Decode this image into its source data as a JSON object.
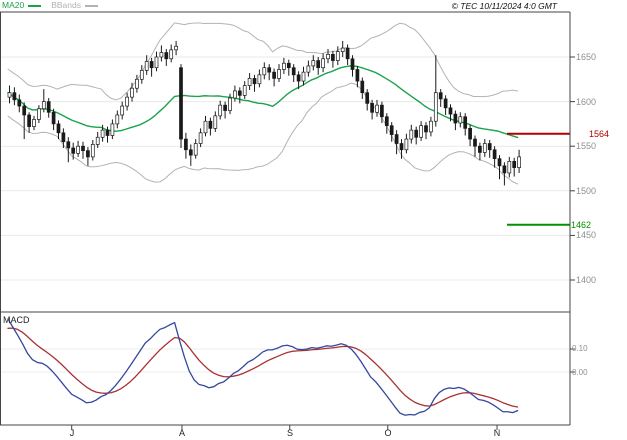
{
  "legend": {
    "ma20_label": "MA20",
    "bbands_label": "BBands"
  },
  "copyright": "© TEC 10/11/2024 4:0 GMT",
  "y_axis": {
    "labels": [
      1650,
      1600,
      1550,
      1500,
      1450,
      1400
    ]
  },
  "x_axis": {
    "months": [
      "J",
      "A",
      "S",
      "O",
      "N"
    ],
    "tick_indices": [
      13,
      35.5,
      57.5,
      77.5,
      99.8
    ]
  },
  "levels": {
    "resistance": {
      "value": 1564,
      "color": "#b00000"
    },
    "support": {
      "value": 1462,
      "color": "#009000"
    }
  },
  "indicators": {
    "ma20": {
      "period": 20,
      "color": "#1aa34a"
    },
    "bollinger": {
      "period": 20,
      "mult": 2,
      "color": "#b3b3b3"
    }
  },
  "macd_panel": {
    "label": "MACD",
    "ticks": [
      {
        "label": "0.10",
        "value": 0.1
      },
      {
        "label": "0.00",
        "value": 0.0
      }
    ],
    "line_color": "#35479e",
    "signal_color": "#a83232",
    "params": {
      "fast": 12,
      "slow": 26,
      "signal": 9,
      "divisor": 100,
      "seed_fast_offset": 15,
      "seed_slow_offset": -8,
      "seed_signal_offset": -0.04
    }
  },
  "chart_data": [
    {
      "type": "candlestick",
      "name": "daily price with MA20 and Bollinger Bands",
      "ylim": [
        1364,
        1700
      ],
      "grid": [
        1650,
        1600,
        1550,
        1500,
        1450,
        1400
      ],
      "ohlc": [
        [
          1605,
          1618,
          1598,
          1610
        ],
        [
          1610,
          1616,
          1596,
          1602
        ],
        [
          1602,
          1608,
          1588,
          1595
        ],
        [
          1595,
          1599,
          1558,
          1585
        ],
        [
          1585,
          1588,
          1565,
          1572
        ],
        [
          1572,
          1584,
          1568,
          1580
        ],
        [
          1580,
          1596,
          1576,
          1592
        ],
        [
          1592,
          1614,
          1588,
          1600
        ],
        [
          1600,
          1604,
          1582,
          1588
        ],
        [
          1588,
          1592,
          1568,
          1575
        ],
        [
          1575,
          1579,
          1558,
          1565
        ],
        [
          1565,
          1570,
          1548,
          1555
        ],
        [
          1555,
          1560,
          1532,
          1548
        ],
        [
          1548,
          1554,
          1535,
          1542
        ],
        [
          1542,
          1556,
          1538,
          1550
        ],
        [
          1550,
          1555,
          1536,
          1545
        ],
        [
          1545,
          1549,
          1528,
          1538
        ],
        [
          1538,
          1557,
          1534,
          1552
        ],
        [
          1552,
          1566,
          1548,
          1560
        ],
        [
          1560,
          1574,
          1555,
          1568
        ],
        [
          1568,
          1572,
          1554,
          1562
        ],
        [
          1562,
          1580,
          1558,
          1575
        ],
        [
          1575,
          1590,
          1570,
          1585
        ],
        [
          1585,
          1600,
          1580,
          1595
        ],
        [
          1595,
          1610,
          1590,
          1605
        ],
        [
          1605,
          1621,
          1600,
          1615
        ],
        [
          1615,
          1630,
          1610,
          1625
        ],
        [
          1625,
          1641,
          1620,
          1635
        ],
        [
          1635,
          1652,
          1630,
          1645
        ],
        [
          1645,
          1649,
          1628,
          1638
        ],
        [
          1638,
          1656,
          1634,
          1650
        ],
        [
          1650,
          1663,
          1645,
          1655
        ],
        [
          1655,
          1659,
          1640,
          1648
        ],
        [
          1648,
          1664,
          1644,
          1658
        ],
        [
          1658,
          1668,
          1652,
          1662
        ],
        [
          1638,
          1642,
          1548,
          1558
        ],
        [
          1558,
          1565,
          1536,
          1546
        ],
        [
          1546,
          1552,
          1528,
          1540
        ],
        [
          1540,
          1558,
          1536,
          1553
        ],
        [
          1553,
          1570,
          1549,
          1565
        ],
        [
          1565,
          1584,
          1561,
          1578
        ],
        [
          1578,
          1582,
          1562,
          1570
        ],
        [
          1570,
          1589,
          1566,
          1584
        ],
        [
          1584,
          1601,
          1580,
          1596
        ],
        [
          1596,
          1600,
          1581,
          1590
        ],
        [
          1590,
          1609,
          1586,
          1604
        ],
        [
          1604,
          1618,
          1600,
          1612
        ],
        [
          1612,
          1616,
          1598,
          1607
        ],
        [
          1607,
          1623,
          1603,
          1618
        ],
        [
          1618,
          1632,
          1613,
          1626
        ],
        [
          1626,
          1630,
          1611,
          1620
        ],
        [
          1620,
          1636,
          1616,
          1630
        ],
        [
          1630,
          1644,
          1625,
          1638
        ],
        [
          1638,
          1642,
          1624,
          1633
        ],
        [
          1633,
          1637,
          1617,
          1626
        ],
        [
          1626,
          1642,
          1622,
          1636
        ],
        [
          1636,
          1649,
          1631,
          1643
        ],
        [
          1643,
          1647,
          1629,
          1638
        ],
        [
          1638,
          1642,
          1622,
          1630
        ],
        [
          1630,
          1634,
          1614,
          1623
        ],
        [
          1623,
          1639,
          1618,
          1633
        ],
        [
          1633,
          1646,
          1628,
          1640
        ],
        [
          1640,
          1652,
          1635,
          1646
        ],
        [
          1646,
          1650,
          1630,
          1638
        ],
        [
          1638,
          1654,
          1633,
          1648
        ],
        [
          1648,
          1659,
          1643,
          1653
        ],
        [
          1653,
          1657,
          1638,
          1646
        ],
        [
          1646,
          1662,
          1641,
          1656
        ],
        [
          1656,
          1668,
          1650,
          1660
        ],
        [
          1660,
          1664,
          1641,
          1648
        ],
        [
          1648,
          1652,
          1628,
          1636
        ],
        [
          1636,
          1640,
          1616,
          1623
        ],
        [
          1623,
          1627,
          1603,
          1610
        ],
        [
          1610,
          1614,
          1590,
          1598
        ],
        [
          1598,
          1602,
          1580,
          1588
        ],
        [
          1588,
          1602,
          1583,
          1596
        ],
        [
          1596,
          1600,
          1576,
          1583
        ],
        [
          1583,
          1587,
          1564,
          1573
        ],
        [
          1573,
          1577,
          1555,
          1563
        ],
        [
          1563,
          1568,
          1541,
          1553
        ],
        [
          1553,
          1558,
          1536,
          1546
        ],
        [
          1546,
          1564,
          1542,
          1558
        ],
        [
          1558,
          1574,
          1553,
          1568
        ],
        [
          1568,
          1572,
          1552,
          1560
        ],
        [
          1560,
          1578,
          1556,
          1573
        ],
        [
          1573,
          1577,
          1558,
          1566
        ],
        [
          1566,
          1583,
          1561,
          1578
        ],
        [
          1578,
          1652,
          1572,
          1610
        ],
        [
          1610,
          1614,
          1594,
          1603
        ],
        [
          1603,
          1607,
          1585,
          1593
        ],
        [
          1593,
          1597,
          1578,
          1586
        ],
        [
          1586,
          1590,
          1568,
          1576
        ],
        [
          1576,
          1588,
          1571,
          1583
        ],
        [
          1583,
          1587,
          1562,
          1570
        ],
        [
          1570,
          1574,
          1550,
          1558
        ],
        [
          1558,
          1562,
          1538,
          1550
        ],
        [
          1550,
          1554,
          1534,
          1543
        ],
        [
          1543,
          1558,
          1538,
          1553
        ],
        [
          1553,
          1557,
          1537,
          1546
        ],
        [
          1546,
          1550,
          1526,
          1536
        ],
        [
          1536,
          1540,
          1513,
          1528
        ],
        [
          1528,
          1532,
          1506,
          1520
        ],
        [
          1520,
          1538,
          1515,
          1533
        ],
        [
          1533,
          1537,
          1516,
          1526
        ],
        [
          1526,
          1546,
          1520,
          1538
        ]
      ]
    },
    {
      "type": "line",
      "name": "MACD",
      "series": [
        {
          "name": "macd line",
          "color": "#35479e",
          "derived": "EMA12-EMA26 of closes, divided by 100"
        },
        {
          "name": "signal line",
          "color": "#a83232",
          "derived": "EMA9 of macd line"
        }
      ],
      "axis_ticks": [
        0.1,
        0.0
      ]
    }
  ]
}
